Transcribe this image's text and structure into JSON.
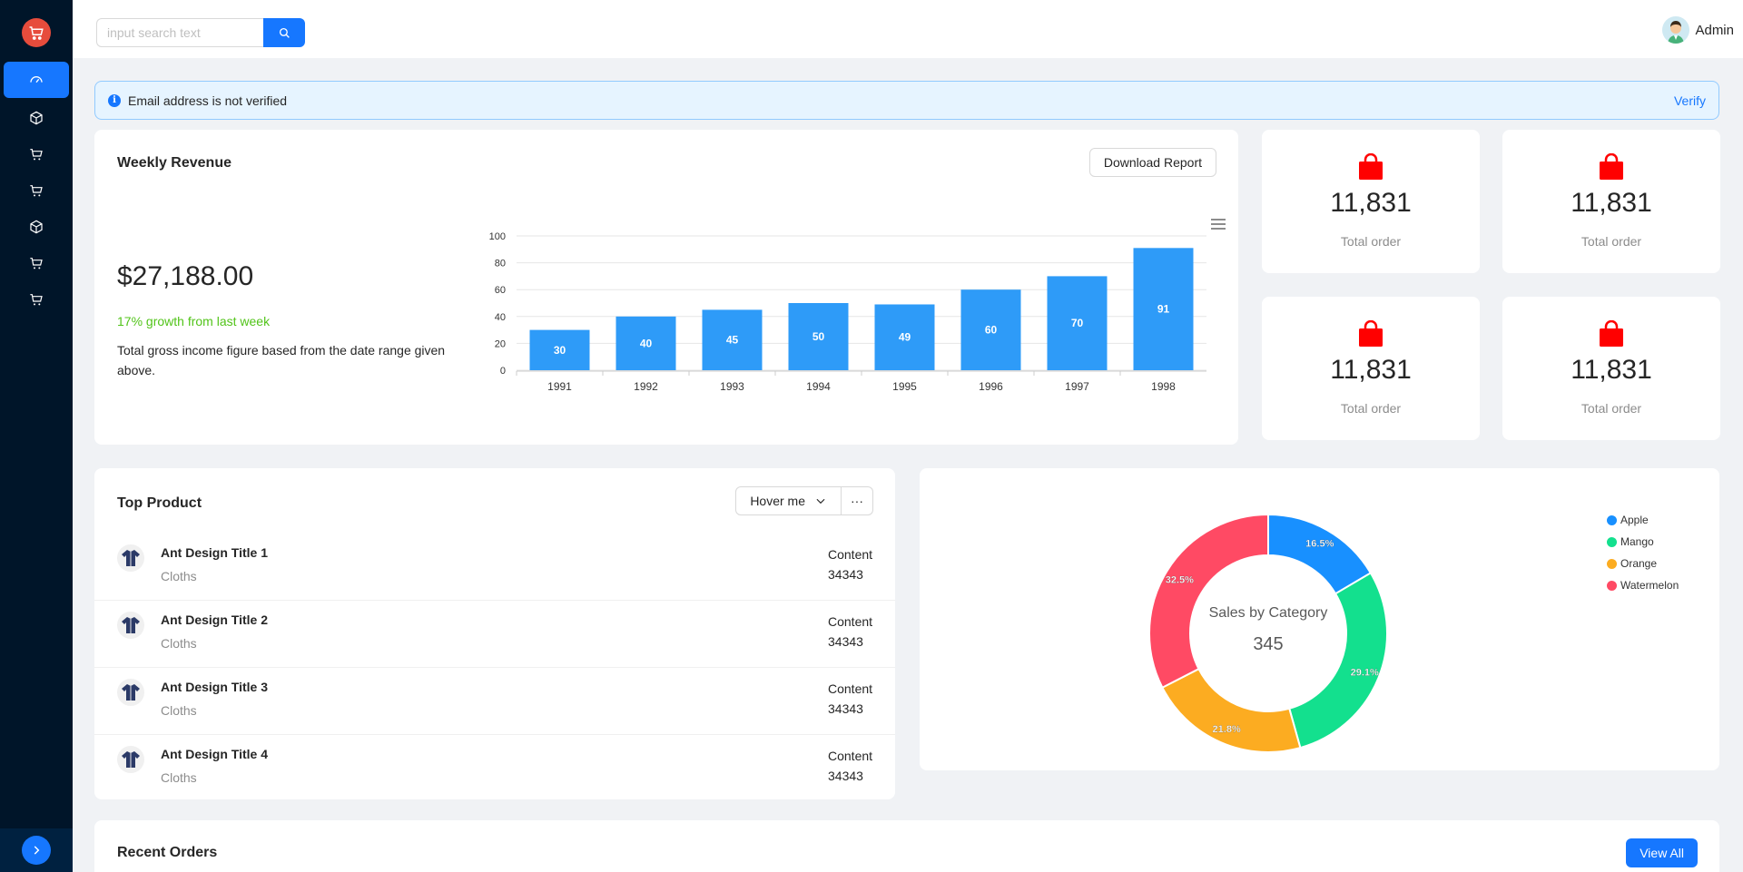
{
  "header": {
    "search_placeholder": "input search text",
    "user_name": "Admin"
  },
  "sidebar": {
    "items": [
      {
        "icon": "dashboard-icon",
        "active": true
      },
      {
        "icon": "cube-icon"
      },
      {
        "icon": "cart-icon"
      },
      {
        "icon": "cart-icon"
      },
      {
        "icon": "cube-icon"
      },
      {
        "icon": "cart-icon"
      },
      {
        "icon": "cart-icon"
      }
    ]
  },
  "alert": {
    "message": "Email address is not verified",
    "action": "Verify"
  },
  "revenue": {
    "title": "Weekly Revenue",
    "download_label": "Download Report",
    "amount": "$27,188.00",
    "growth": "17% growth from last week",
    "description": "Total gross income figure based from the date range given above."
  },
  "stats": [
    {
      "value": "11,831",
      "label": "Total order"
    },
    {
      "value": "11,831",
      "label": "Total order"
    },
    {
      "value": "11,831",
      "label": "Total order"
    },
    {
      "value": "11,831",
      "label": "Total order"
    }
  ],
  "top_product": {
    "title": "Top Product",
    "dropdown_label": "Hover me",
    "more_label": "···",
    "items": [
      {
        "title": "Ant Design Title 1",
        "subtitle": "Cloths",
        "content": "Content",
        "value": "34343"
      },
      {
        "title": "Ant Design Title 2",
        "subtitle": "Cloths",
        "content": "Content",
        "value": "34343"
      },
      {
        "title": "Ant Design Title 3",
        "subtitle": "Cloths",
        "content": "Content",
        "value": "34343"
      },
      {
        "title": "Ant Design Title 4",
        "subtitle": "Cloths",
        "content": "Content",
        "value": "34343"
      }
    ]
  },
  "recent_orders": {
    "title": "Recent Orders",
    "view_all_label": "View All"
  },
  "colors": {
    "primary": "#1677ff",
    "sidebar": "#001529",
    "bar": "#2e9bf8",
    "bag": "#ff0000",
    "growth": "#52c41a"
  },
  "chart_data": [
    {
      "type": "bar",
      "categories": [
        "1991",
        "1992",
        "1993",
        "1994",
        "1995",
        "1996",
        "1997",
        "1998"
      ],
      "values": [
        30,
        40,
        45,
        50,
        49,
        60,
        70,
        91
      ],
      "ylim": [
        0,
        100
      ],
      "yticks": [
        0,
        20,
        40,
        60,
        80,
        100
      ],
      "data_labels": true,
      "grid": true
    },
    {
      "type": "pie",
      "variant": "donut",
      "center_title": "Sales by Category",
      "center_value": "345",
      "labels": [
        "Apple",
        "Mango",
        "Orange",
        "Watermelon"
      ],
      "values": [
        16.5,
        29.1,
        21.8,
        32.5
      ],
      "colors": [
        "#1890ff",
        "#13e08e",
        "#fcac21",
        "#ff4a64"
      ],
      "legend": "top-right"
    }
  ]
}
